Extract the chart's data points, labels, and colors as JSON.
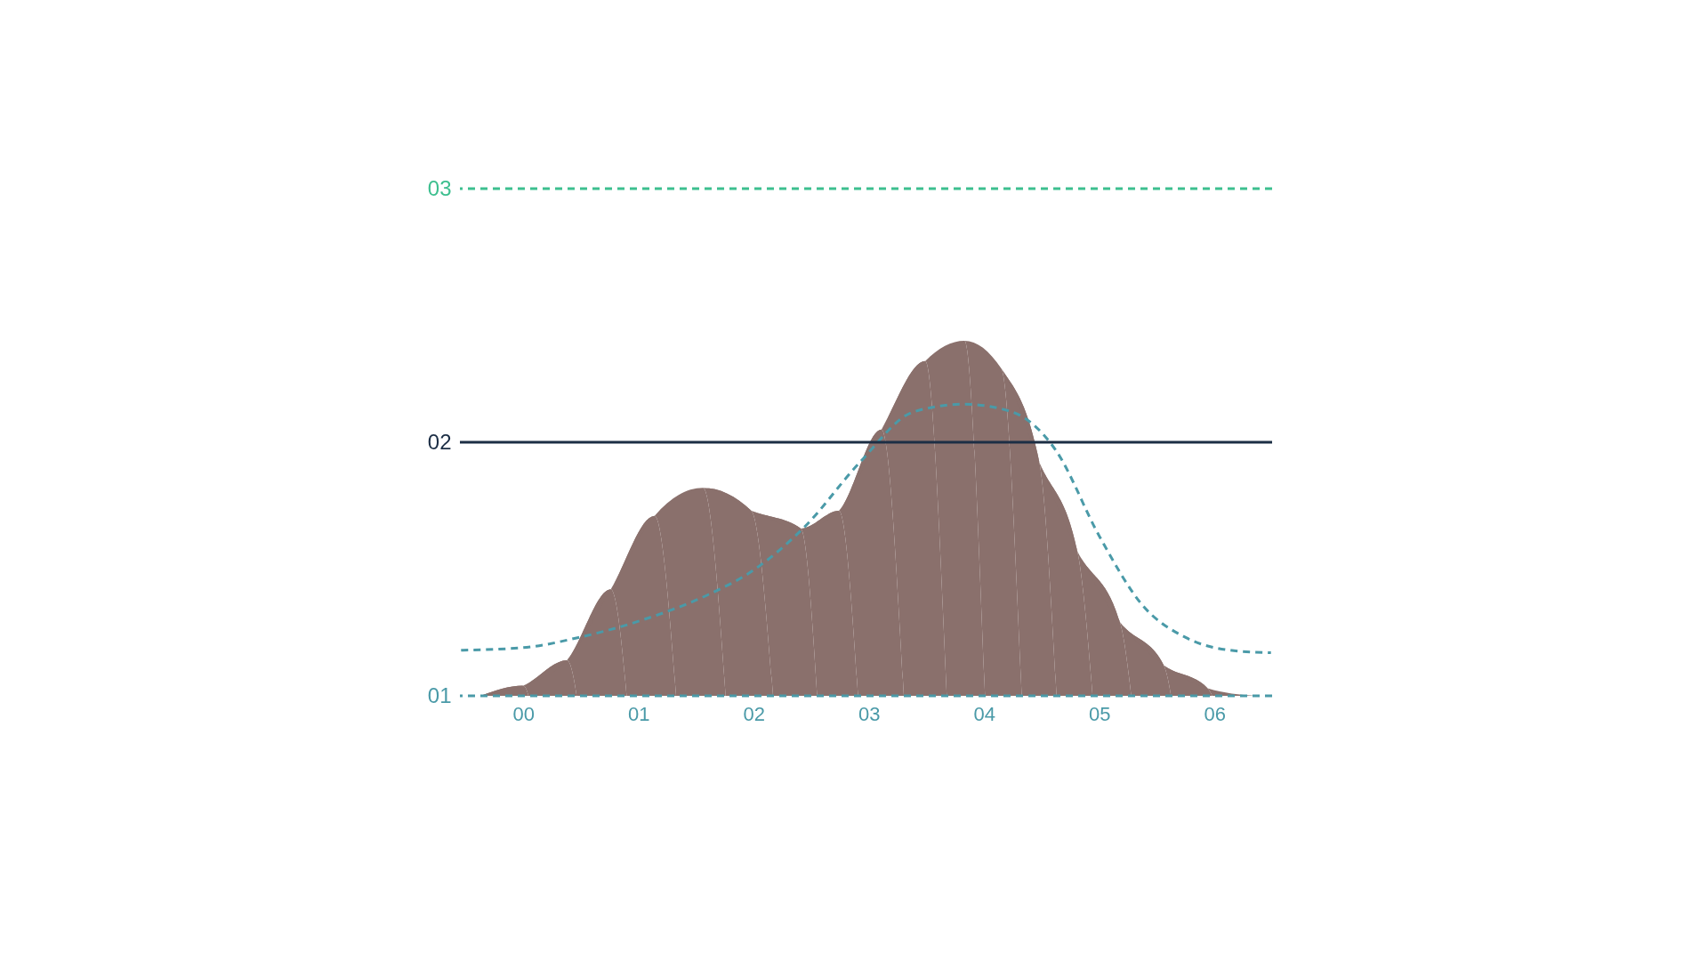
{
  "chart_data": {
    "type": "area",
    "xlim": [
      -0.55,
      6.5
    ],
    "ylim": [
      1,
      3
    ],
    "xticks": [
      {
        "value": 0,
        "label": "00"
      },
      {
        "value": 1,
        "label": "01"
      },
      {
        "value": 2,
        "label": "02"
      },
      {
        "value": 3,
        "label": "03"
      },
      {
        "value": 4,
        "label": "04"
      },
      {
        "value": 5,
        "label": "05"
      },
      {
        "value": 6,
        "label": "06"
      }
    ],
    "yticks": [
      {
        "value": 1,
        "label": "01"
      },
      {
        "value": 2,
        "label": "02"
      },
      {
        "value": 3,
        "label": "03"
      }
    ],
    "grid": false,
    "series": [
      {
        "color": "#8a706c",
        "x": [
          -0.37,
          0,
          0.38,
          0.76,
          1.14,
          1.56,
          1.98,
          2.41,
          2.74,
          3.11,
          3.49,
          3.83,
          4.15,
          4.48,
          4.81,
          5.18,
          5.56,
          5.94,
          6.36
        ],
        "values": [
          1.0,
          1.04,
          1.14,
          1.42,
          1.71,
          1.82,
          1.73,
          1.66,
          1.73,
          2.05,
          2.32,
          2.4,
          2.29,
          1.92,
          1.57,
          1.29,
          1.12,
          1.03,
          1.0
        ]
      },
      {
        "type": "line",
        "color": "#4a9aa8",
        "line_style": "dashed",
        "x": [
          -0.54,
          0,
          0.48,
          1.04,
          1.61,
          1.98,
          2.45,
          2.92,
          3.39,
          3.83,
          4.24,
          4.62,
          5.0,
          5.37,
          5.75,
          6.13,
          6.49
        ],
        "values": [
          1.18,
          1.19,
          1.23,
          1.3,
          1.4,
          1.49,
          1.67,
          1.92,
          2.12,
          2.15,
          2.12,
          1.97,
          1.63,
          1.36,
          1.23,
          1.18,
          1.17
        ]
      }
    ],
    "ref_lines": [
      {
        "axis": "y",
        "value": 3,
        "color": "#3dbf8f",
        "line_style": "dashed"
      },
      {
        "axis": "y",
        "value": 2,
        "color": "#1c2e45",
        "line_style": "solid"
      },
      {
        "axis": "y",
        "value": 1,
        "color": "#4a9aa8",
        "line_style": "dashed"
      }
    ]
  }
}
